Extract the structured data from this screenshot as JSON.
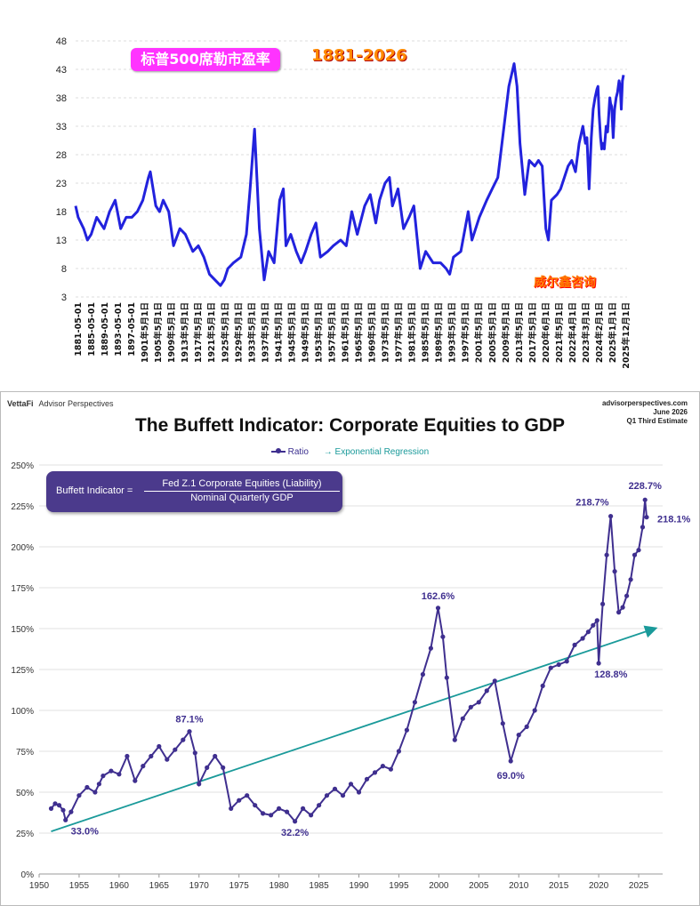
{
  "top": {
    "title": "标普500席勒市盈率",
    "range": "1881-2026",
    "watermark": "威尔鑫咨询",
    "line_color": "#2222dd",
    "chart_data": {
      "type": "line",
      "yticks": [
        "48",
        "43",
        "38",
        "33",
        "28",
        "23",
        "18",
        "13",
        "8",
        "3"
      ],
      "ylim": [
        3,
        48
      ],
      "xlim": [
        1881.33,
        2026.0
      ],
      "xticklabels": [
        "1881-05-01",
        "1885-05-01",
        "1889-05-01",
        "1893-05-01",
        "1897-05-01",
        "1901年5月1日",
        "1905年5月1日",
        "1909年5月1日",
        "1913年5月1日",
        "1917年5月1日",
        "1921年5月1日",
        "1925年5月1日",
        "1929年5月1日",
        "1933年5月1日",
        "1937年5月1日",
        "1941年5月1日",
        "1945年5月1日",
        "1949年5月1日",
        "1953年5月1日",
        "1957年5月1日",
        "1961年5月1日",
        "1965年5月1日",
        "1969年5月1日",
        "1973年5月1日",
        "1977年5月1日",
        "1981年5月1日",
        "1985年5月1日",
        "1989年5月1日",
        "1993年5月1日",
        "1997年5月1日",
        "2001年5月1日",
        "2005年5月1日",
        "2009年5月1日",
        "2013年5月1日",
        "2017年5月1日",
        "2020年6月1日",
        "2021年5月1日",
        "2022年4月1日",
        "2023年3月1日",
        "2024年2月1日",
        "2025年1月1日",
        "2025年12月1日"
      ],
      "series": [
        {
          "points": [
            [
              1881.3,
              19
            ],
            [
              1882,
              17
            ],
            [
              1883.5,
              15
            ],
            [
              1884.5,
              13
            ],
            [
              1885.5,
              14
            ],
            [
              1887,
              17
            ],
            [
              1889,
              15
            ],
            [
              1890.5,
              18
            ],
            [
              1892,
              20
            ],
            [
              1893.5,
              15
            ],
            [
              1895,
              17
            ],
            [
              1896.5,
              17
            ],
            [
              1898,
              18
            ],
            [
              1899.5,
              20
            ],
            [
              1901,
              24
            ],
            [
              1901.5,
              25
            ],
            [
              1903,
              19
            ],
            [
              1904,
              18
            ],
            [
              1905,
              20
            ],
            [
              1906.5,
              18
            ],
            [
              1907.8,
              12
            ],
            [
              1909.5,
              15
            ],
            [
              1911,
              14
            ],
            [
              1913,
              11
            ],
            [
              1914.5,
              12
            ],
            [
              1916,
              10
            ],
            [
              1917.5,
              7
            ],
            [
              1919,
              6
            ],
            [
              1920.5,
              5
            ],
            [
              1921.5,
              6
            ],
            [
              1922.5,
              8
            ],
            [
              1924,
              9
            ],
            [
              1926,
              10
            ],
            [
              1927.5,
              14
            ],
            [
              1928.5,
              22
            ],
            [
              1929.7,
              32.5
            ],
            [
              1931,
              15
            ],
            [
              1932.3,
              6
            ],
            [
              1933.5,
              11
            ],
            [
              1935,
              9
            ],
            [
              1936.5,
              20
            ],
            [
              1937.5,
              22
            ],
            [
              1938.2,
              12
            ],
            [
              1939.5,
              14
            ],
            [
              1941,
              11
            ],
            [
              1942.3,
              9
            ],
            [
              1943.5,
              11
            ],
            [
              1945,
              14
            ],
            [
              1946.3,
              16
            ],
            [
              1947.5,
              10
            ],
            [
              1949.5,
              11
            ],
            [
              1951,
              12
            ],
            [
              1953,
              13
            ],
            [
              1954.5,
              12
            ],
            [
              1956,
              18
            ],
            [
              1957.5,
              14
            ],
            [
              1959.5,
              19
            ],
            [
              1961,
              21
            ],
            [
              1962.5,
              16
            ],
            [
              1963.5,
              20
            ],
            [
              1965,
              23
            ],
            [
              1966.2,
              24
            ],
            [
              1967,
              19
            ],
            [
              1968.5,
              22
            ],
            [
              1970,
              15
            ],
            [
              1971.5,
              17
            ],
            [
              1972.8,
              19
            ],
            [
              1974.5,
              8
            ],
            [
              1976,
              11
            ],
            [
              1978,
              9
            ],
            [
              1980,
              9
            ],
            [
              1981.5,
              8
            ],
            [
              1982.5,
              7
            ],
            [
              1983.5,
              10
            ],
            [
              1985.5,
              11
            ],
            [
              1987.5,
              18
            ],
            [
              1988.5,
              13
            ],
            [
              1990.5,
              17
            ],
            [
              1992.5,
              20
            ],
            [
              1994,
              22
            ],
            [
              1995.5,
              24
            ],
            [
              1997,
              32
            ],
            [
              1998.5,
              40
            ],
            [
              1999.9,
              44
            ],
            [
              2000.7,
              40
            ],
            [
              2001.5,
              30
            ],
            [
              2002.8,
              21
            ],
            [
              2004,
              27
            ],
            [
              2005.5,
              26
            ],
            [
              2006.5,
              27
            ],
            [
              2007.5,
              26
            ],
            [
              2008.5,
              15
            ],
            [
              2009.2,
              13
            ],
            [
              2010,
              20
            ],
            [
              2011.5,
              21
            ],
            [
              2012.5,
              22
            ],
            [
              2013.5,
              24
            ],
            [
              2014.5,
              26
            ],
            [
              2015.5,
              27
            ],
            [
              2016.5,
              25
            ],
            [
              2017.5,
              30
            ],
            [
              2018.5,
              33
            ],
            [
              2019.2,
              30
            ],
            [
              2019.6,
              31
            ],
            [
              2020.2,
              22
            ],
            [
              2020.8,
              31
            ],
            [
              2021.3,
              36
            ],
            [
              2021.8,
              38
            ],
            [
              2022.3,
              39.5
            ],
            [
              2022.6,
              40
            ],
            [
              2022.9,
              35
            ],
            [
              2023.3,
              31
            ],
            [
              2023.6,
              29
            ],
            [
              2023.9,
              30
            ],
            [
              2024.3,
              29
            ],
            [
              2024.8,
              33
            ],
            [
              2025.2,
              32
            ],
            [
              2025.5,
              35
            ],
            [
              2025.8,
              38
            ],
            [
              2026.0,
              37
            ],
            [
              2026.3,
              36.5
            ],
            [
              2026.7,
              31
            ],
            [
              2027.1,
              36
            ],
            [
              2027.5,
              38
            ],
            [
              2027.9,
              39
            ],
            [
              2028.3,
              41
            ],
            [
              2028.6,
              40
            ],
            [
              2028.9,
              36
            ],
            [
              2029.2,
              41
            ],
            [
              2029.5,
              42
            ]
          ]
        }
      ]
    }
  },
  "bottom": {
    "brand": "VettaFi",
    "brand_sub": "Advisor Perspectives",
    "source_lines": [
      "advisorperspectives.com",
      "June 2026",
      "Q1 Third Estimate"
    ],
    "title": "The Buffett Indicator: Corporate Equities to GDP",
    "legend_ratio": "Ratio",
    "legend_regression": "Exponential Regression",
    "formula_lhs": "Buffett Indicator =",
    "formula_num": "Fed Z.1 Corporate Equities (Liability)",
    "formula_den": "Nominal Quarterly GDP",
    "ratio_color": "#3f2f8f",
    "regression_color": "#1a9a9a",
    "chart_data": {
      "type": "line",
      "ylim": [
        0,
        250
      ],
      "xlim": [
        1950,
        2028
      ],
      "yticks": [
        "0%",
        "25%",
        "50%",
        "75%",
        "100%",
        "125%",
        "150%",
        "175%",
        "200%",
        "225%",
        "250%"
      ],
      "xticks": [
        "1950",
        "1955",
        "1960",
        "1965",
        "1970",
        "1975",
        "1980",
        "1985",
        "1990",
        "1995",
        "2000",
        "2005",
        "2010",
        "2015",
        "2020",
        "2025"
      ],
      "series": [
        {
          "name": "Ratio",
          "points": [
            [
              1951.5,
              40
            ],
            [
              1952,
              43
            ],
            [
              1952.5,
              42
            ],
            [
              1953,
              39
            ],
            [
              1953.3,
              33
            ],
            [
              1954,
              38
            ],
            [
              1955,
              48
            ],
            [
              1956,
              53
            ],
            [
              1957,
              50
            ],
            [
              1957.5,
              55
            ],
            [
              1958,
              60
            ],
            [
              1959,
              63
            ],
            [
              1960,
              61
            ],
            [
              1961,
              72
            ],
            [
              1962,
              57
            ],
            [
              1963,
              66
            ],
            [
              1964,
              72
            ],
            [
              1965,
              78
            ],
            [
              1966,
              70
            ],
            [
              1967,
              76
            ],
            [
              1968,
              82
            ],
            [
              1968.8,
              87.1
            ],
            [
              1969.5,
              74
            ],
            [
              1970,
              55
            ],
            [
              1971,
              65
            ],
            [
              1972,
              72
            ],
            [
              1973,
              65
            ],
            [
              1974,
              40
            ],
            [
              1975,
              45
            ],
            [
              1976,
              48
            ],
            [
              1977,
              42
            ],
            [
              1978,
              37
            ],
            [
              1979,
              36
            ],
            [
              1980,
              40
            ],
            [
              1981,
              38
            ],
            [
              1982,
              32.2
            ],
            [
              1983,
              40
            ],
            [
              1984,
              36
            ],
            [
              1985,
              42
            ],
            [
              1986,
              48
            ],
            [
              1987,
              52
            ],
            [
              1988,
              48
            ],
            [
              1989,
              55
            ],
            [
              1990,
              50
            ],
            [
              1991,
              58
            ],
            [
              1992,
              62
            ],
            [
              1993,
              66
            ],
            [
              1994,
              64
            ],
            [
              1995,
              75
            ],
            [
              1996,
              88
            ],
            [
              1997,
              105
            ],
            [
              1998,
              122
            ],
            [
              1999,
              138
            ],
            [
              1999.9,
              162.6
            ],
            [
              2000.5,
              145
            ],
            [
              2001,
              120
            ],
            [
              2002,
              82
            ],
            [
              2003,
              95
            ],
            [
              2004,
              102
            ],
            [
              2005,
              105
            ],
            [
              2006,
              112
            ],
            [
              2007,
              118
            ],
            [
              2008,
              92
            ],
            [
              2009,
              69
            ],
            [
              2010,
              85
            ],
            [
              2011,
              90
            ],
            [
              2012,
              100
            ],
            [
              2013,
              115
            ],
            [
              2014,
              126
            ],
            [
              2015,
              128
            ],
            [
              2016,
              130
            ],
            [
              2017,
              140
            ],
            [
              2018,
              144
            ],
            [
              2018.7,
              148
            ],
            [
              2019.3,
              152
            ],
            [
              2019.8,
              155
            ],
            [
              2020,
              128.8
            ],
            [
              2020.5,
              165
            ],
            [
              2021,
              195
            ],
            [
              2021.5,
              218.7
            ],
            [
              2022,
              185
            ],
            [
              2022.5,
              160
            ],
            [
              2023,
              163
            ],
            [
              2023.5,
              170
            ],
            [
              2024,
              180
            ],
            [
              2024.5,
              195
            ],
            [
              2025,
              198
            ],
            [
              2025.5,
              212
            ],
            [
              2025.8,
              228.7
            ],
            [
              2026,
              218.1
            ]
          ]
        },
        {
          "name": "Exponential Regression",
          "points": [
            [
              1951.5,
              26
            ],
            [
              2027,
              150
            ]
          ]
        }
      ],
      "annotations": [
        {
          "label": "33.0%",
          "x": 1953.3,
          "y": 33
        },
        {
          "label": "87.1%",
          "x": 1968.8,
          "y": 87.1
        },
        {
          "label": "32.2%",
          "x": 1982,
          "y": 32.2
        },
        {
          "label": "162.6%",
          "x": 1999.9,
          "y": 162.6
        },
        {
          "label": "69.0%",
          "x": 2009,
          "y": 69
        },
        {
          "label": "128.8%",
          "x": 2020,
          "y": 128.8
        },
        {
          "label": "218.7%",
          "x": 2021.5,
          "y": 218.7
        },
        {
          "label": "228.7%",
          "x": 2025.8,
          "y": 228.7
        },
        {
          "label": "218.1%",
          "x": 2026,
          "y": 218.1
        }
      ]
    }
  }
}
